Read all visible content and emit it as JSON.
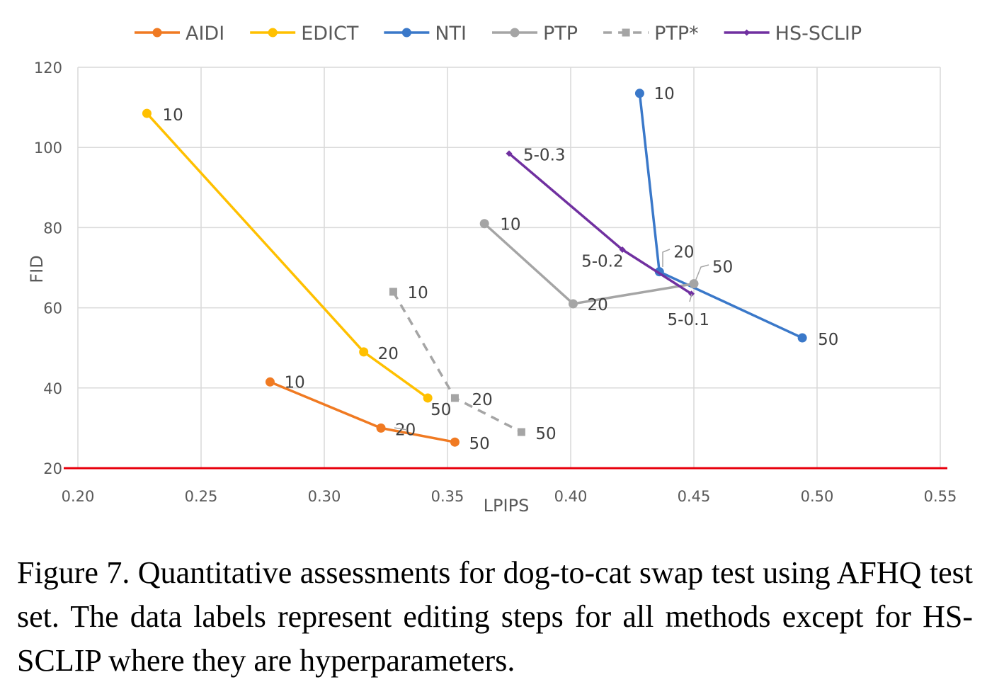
{
  "chart_data": {
    "type": "line",
    "xlabel": "LPIPS",
    "ylabel": "FID",
    "xlim": [
      0.2,
      0.55
    ],
    "ylim": [
      20,
      120
    ],
    "x_ticks": [
      "0.20",
      "0.25",
      "0.30",
      "0.35",
      "0.40",
      "0.45",
      "0.50",
      "0.55"
    ],
    "y_ticks": [
      "20",
      "40",
      "60",
      "80",
      "100",
      "120"
    ],
    "grid": true,
    "legend_position": "top",
    "series": [
      {
        "name": "AIDI",
        "color": "#F07A22",
        "legend_text_color": "#E8000D",
        "dash": false,
        "marker": "circle",
        "points": [
          {
            "x": 0.278,
            "y": 41.5,
            "label": "10"
          },
          {
            "x": 0.323,
            "y": 30.0,
            "label": "20"
          },
          {
            "x": 0.353,
            "y": 26.5,
            "label": "50"
          }
        ]
      },
      {
        "name": "EDICT",
        "color": "#FFC000",
        "dash": false,
        "marker": "circle",
        "points": [
          {
            "x": 0.228,
            "y": 108.5,
            "label": "10"
          },
          {
            "x": 0.316,
            "y": 49.0,
            "label": "20"
          },
          {
            "x": 0.342,
            "y": 37.5,
            "label": "50"
          }
        ]
      },
      {
        "name": "NTI",
        "color": "#3A78C9",
        "dash": false,
        "marker": "circle",
        "points": [
          {
            "x": 0.428,
            "y": 113.5,
            "label": "10"
          },
          {
            "x": 0.436,
            "y": 69.0,
            "label": "20"
          },
          {
            "x": 0.494,
            "y": 52.5,
            "label": "50"
          }
        ]
      },
      {
        "name": "PTP",
        "color": "#A5A5A5",
        "dash": false,
        "marker": "circle",
        "points": [
          {
            "x": 0.365,
            "y": 81.0,
            "label": "10"
          },
          {
            "x": 0.401,
            "y": 61.0,
            "label": "20"
          },
          {
            "x": 0.45,
            "y": 66.0,
            "label": "50"
          }
        ]
      },
      {
        "name": "PTP*",
        "color": "#A5A5A5",
        "dash": true,
        "marker": "square",
        "points": [
          {
            "x": 0.328,
            "y": 64.0,
            "label": "10"
          },
          {
            "x": 0.353,
            "y": 37.5,
            "label": "20"
          },
          {
            "x": 0.38,
            "y": 29.0,
            "label": "50"
          }
        ]
      },
      {
        "name": "HS-SCLIP",
        "color": "#7030A0",
        "dash": false,
        "marker": "diamond",
        "points": [
          {
            "x": 0.375,
            "y": 98.5,
            "label": "5-0.3"
          },
          {
            "x": 0.421,
            "y": 74.5,
            "label": "5-0.2"
          },
          {
            "x": 0.449,
            "y": 63.5,
            "label": "5-0.1"
          }
        ]
      }
    ]
  },
  "caption": "Figure 7. Quantitative assessments for dog-to-cat swap test using AFHQ test set. The data labels represent editing steps for all methods except for HS-SCLIP where they are hyperparameters."
}
